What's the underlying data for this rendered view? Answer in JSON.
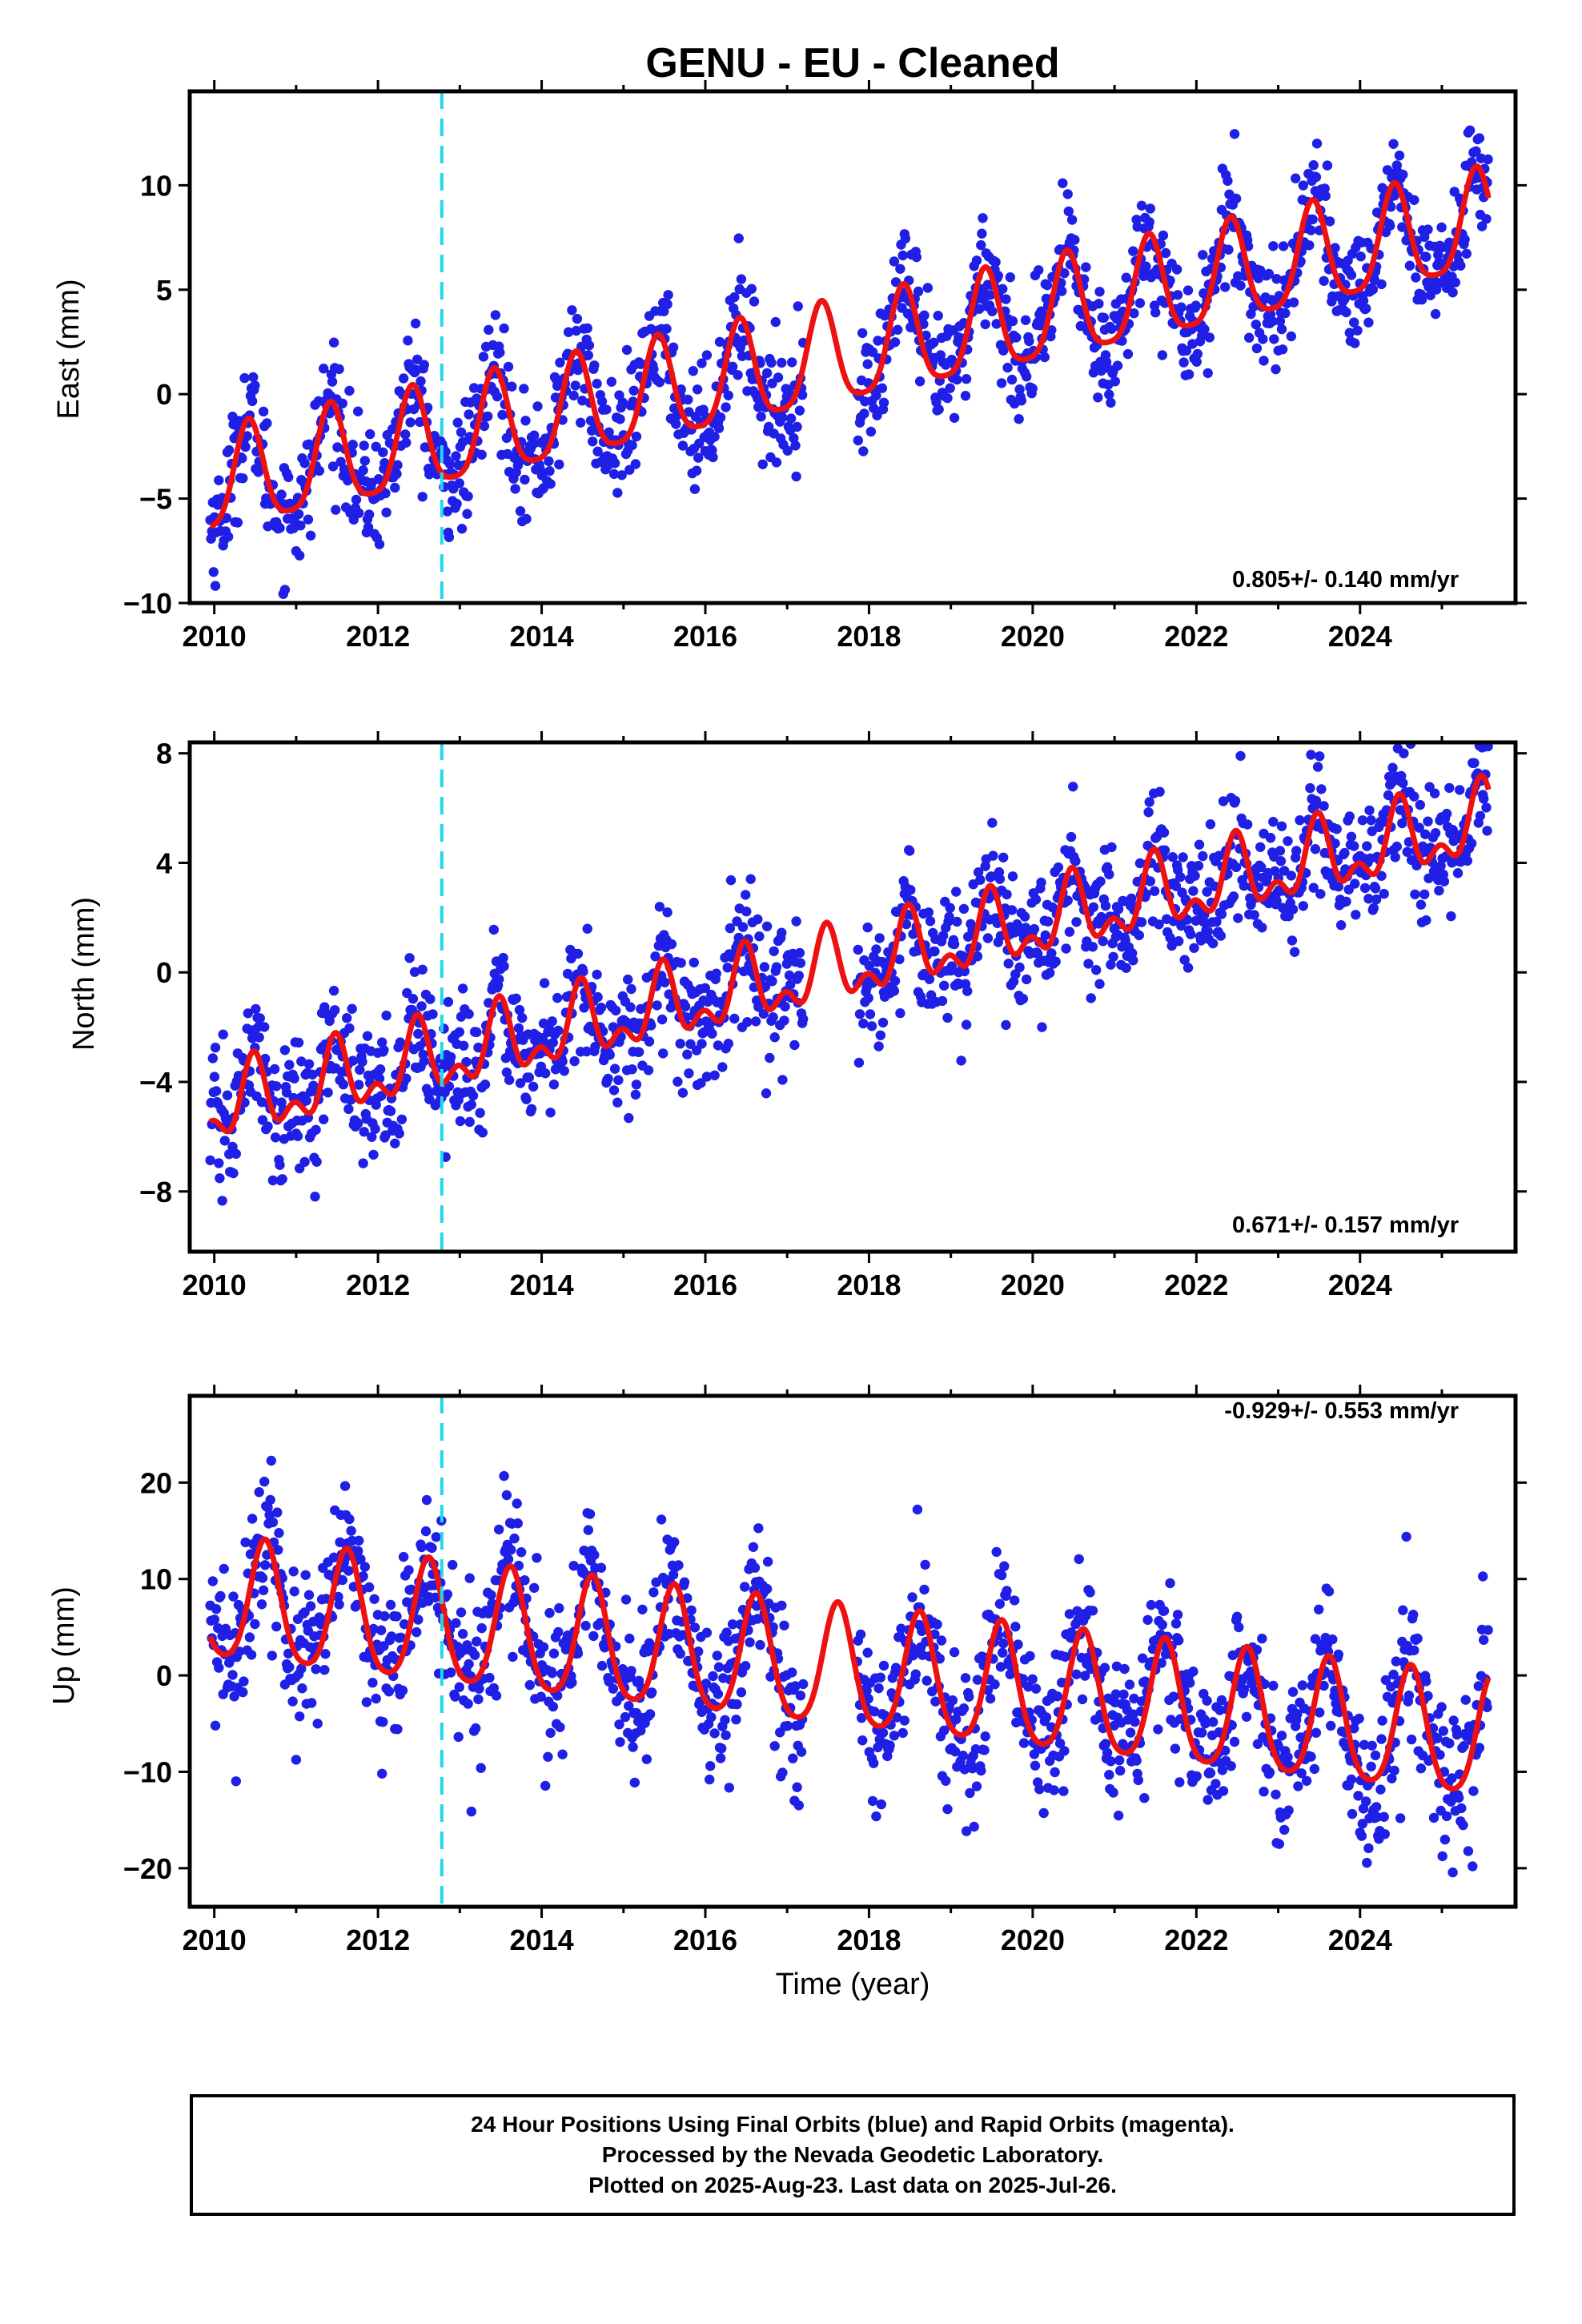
{
  "title": "GENU  - EU - Cleaned",
  "colors": {
    "points": "#1f1fe6",
    "model": "#ee1111",
    "marker": "#22d8ee",
    "frame": "#000000"
  },
  "chart_data": [
    {
      "type": "scatter",
      "ylabel": "East (mm)",
      "xlabel": "",
      "xlim": [
        2009.7,
        2025.9
      ],
      "ylim": [
        -10,
        14.5
      ],
      "xticks": [
        "2010",
        "2012",
        "2014",
        "2016",
        "2018",
        "2020",
        "2022",
        "2024"
      ],
      "yticks": [
        "−10",
        "−5",
        "0",
        "5",
        "10"
      ],
      "rate_label": "0.805+/- 0.140 mm/yr",
      "rate_position": "bottom-right",
      "marker_line_x": 2012.78,
      "model": {
        "offset_at_2010": -4.4,
        "rate": 0.805,
        "amp_annual": 2.4,
        "amp_semiannual": 0.5,
        "peak_year_fraction": 0.42,
        "end_value": 8.6
      },
      "noise_sd": 1.4,
      "data_gap": [
        2017.2,
        2017.85
      ],
      "series": [
        {
          "name": "24 Hour Positions",
          "kind": "points"
        },
        {
          "name": "Model",
          "kind": "line"
        }
      ]
    },
    {
      "type": "scatter",
      "ylabel": "North (mm)",
      "xlabel": "",
      "xlim": [
        2009.7,
        2025.9
      ],
      "ylim": [
        -10.2,
        8.4
      ],
      "xticks": [
        "2010",
        "2012",
        "2014",
        "2016",
        "2018",
        "2020",
        "2022",
        "2024"
      ],
      "yticks": [
        "−8",
        "−4",
        "0",
        "4",
        "8"
      ],
      "rate_label": "0.671+/- 0.157 mm/yr",
      "rate_position": "bottom-right",
      "marker_line_x": 2012.78,
      "model": {
        "offset_at_2010": -5.0,
        "rate": 0.671,
        "amp_annual": 1.1,
        "amp_semiannual": 0.7,
        "peak_year_fraction": 0.48,
        "end_value": 6.8
      },
      "noise_sd": 1.2,
      "data_gap": [
        2017.2,
        2017.85
      ],
      "series": [
        {
          "name": "24 Hour Positions",
          "kind": "points"
        },
        {
          "name": "Model",
          "kind": "line"
        }
      ]
    },
    {
      "type": "scatter",
      "ylabel": "Up (mm)",
      "xlabel": "Time (year)",
      "xlim": [
        2009.7,
        2025.9
      ],
      "ylim": [
        -24,
        29
      ],
      "xticks": [
        "2010",
        "2012",
        "2014",
        "2016",
        "2018",
        "2020",
        "2022",
        "2024"
      ],
      "yticks": [
        "−20",
        "−10",
        "0",
        "10",
        "20"
      ],
      "rate_label": "-0.929+/- 0.553 mm/yr",
      "rate_position": "top-right",
      "marker_line_x": 2012.78,
      "model": {
        "offset_at_2010": 7.5,
        "rate": -0.929,
        "amp_annual": 6.2,
        "amp_semiannual": 1.0,
        "peak_year_fraction": 0.62,
        "end_value": -1.0
      },
      "noise_sd": 4.0,
      "data_gap": [
        2017.2,
        2017.85
      ],
      "series": [
        {
          "name": "24 Hour Positions",
          "kind": "points"
        },
        {
          "name": "Model",
          "kind": "line"
        }
      ]
    }
  ],
  "footer": {
    "line1": "24 Hour Positions Using Final Orbits (blue) and Rapid Orbits (magenta).",
    "line2": "Processed by the Nevada Geodetic Laboratory.",
    "line3": "Plotted on 2025-Aug-23. Last data on 2025-Jul-26."
  }
}
